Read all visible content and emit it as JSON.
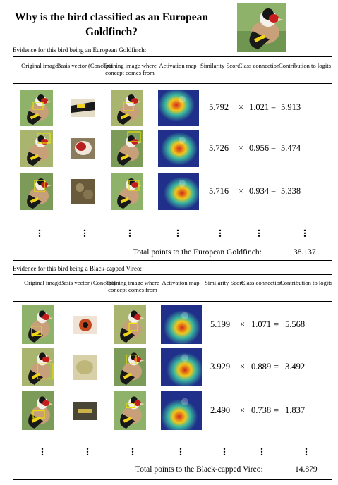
{
  "title": "Why is the bird classified as an European Goldfinch?",
  "headers": [
    "Original image",
    "Basis vector (Concept)",
    "Training image where concept comes from",
    "Activation map",
    "Similarity Score",
    "Class connection",
    "Contribution to logits"
  ],
  "operators": {
    "times": "×",
    "equals": "="
  },
  "sections": [
    {
      "caption": "Evidence for this bird being an European Goldfinch:",
      "rows": [
        {
          "similarity": "5.792",
          "connection": "1.021",
          "contribution": "5.913"
        },
        {
          "similarity": "5.726",
          "connection": "0.956",
          "contribution": "5.474"
        },
        {
          "similarity": "5.716",
          "connection": "0.934",
          "contribution": "5.338"
        }
      ],
      "total_label": "Total points to the European Goldfinch:",
      "total_value": "38.137"
    },
    {
      "caption": "Evidence for this bird being a Black-capped Vireo:",
      "rows": [
        {
          "similarity": "5.199",
          "connection": "1.071",
          "contribution": "5.568"
        },
        {
          "similarity": "3.929",
          "connection": "0.889",
          "contribution": "3.492"
        },
        {
          "similarity": "2.490",
          "connection": "0.738",
          "contribution": "1.837"
        }
      ],
      "total_label": "Total points to the Black-capped Vireo:",
      "total_value": "14.879"
    }
  ],
  "colors": {
    "highlight_box": "#e8e000",
    "heatmap_hot": "#d42a1a",
    "heatmap_cold": "#1f2f8a"
  },
  "icons": [
    "goldfinch-photo",
    "concept-patch",
    "training-photo",
    "activation-heatmap",
    "vertical-ellipsis"
  ]
}
